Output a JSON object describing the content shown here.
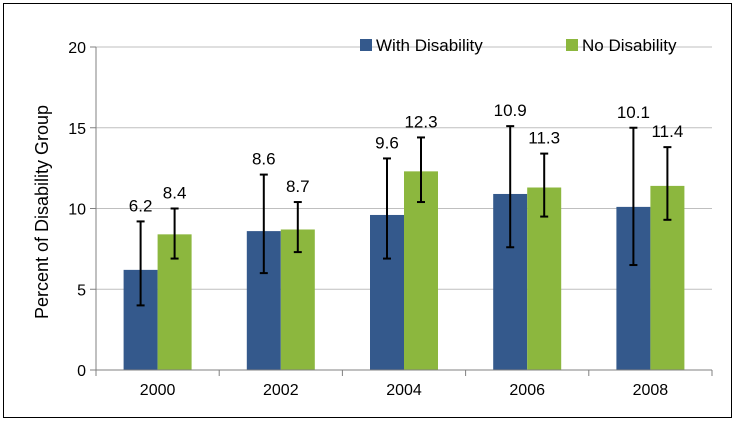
{
  "chart_data": {
    "type": "bar",
    "title": "",
    "xlabel": "",
    "ylabel": "Percent of Disability Group",
    "ylim": [
      0,
      20
    ],
    "yticks": [
      0,
      5,
      10,
      15,
      20
    ],
    "grid": true,
    "legend_position": "top-right",
    "categories": [
      "2000",
      "2002",
      "2004",
      "2006",
      "2008"
    ],
    "series": [
      {
        "name": "With Disability",
        "color": "#34598C",
        "values": [
          6.2,
          8.6,
          9.6,
          10.9,
          10.1
        ],
        "error_low": [
          4.0,
          6.0,
          6.9,
          7.6,
          6.5
        ],
        "error_high": [
          9.2,
          12.1,
          13.1,
          15.1,
          15.0
        ]
      },
      {
        "name": "No Disability",
        "color": "#8CB73E",
        "values": [
          8.4,
          8.7,
          12.3,
          11.3,
          11.4
        ],
        "error_low": [
          6.9,
          7.3,
          10.4,
          9.5,
          9.3
        ],
        "error_high": [
          10.0,
          10.4,
          14.4,
          13.4,
          13.8
        ]
      }
    ]
  }
}
